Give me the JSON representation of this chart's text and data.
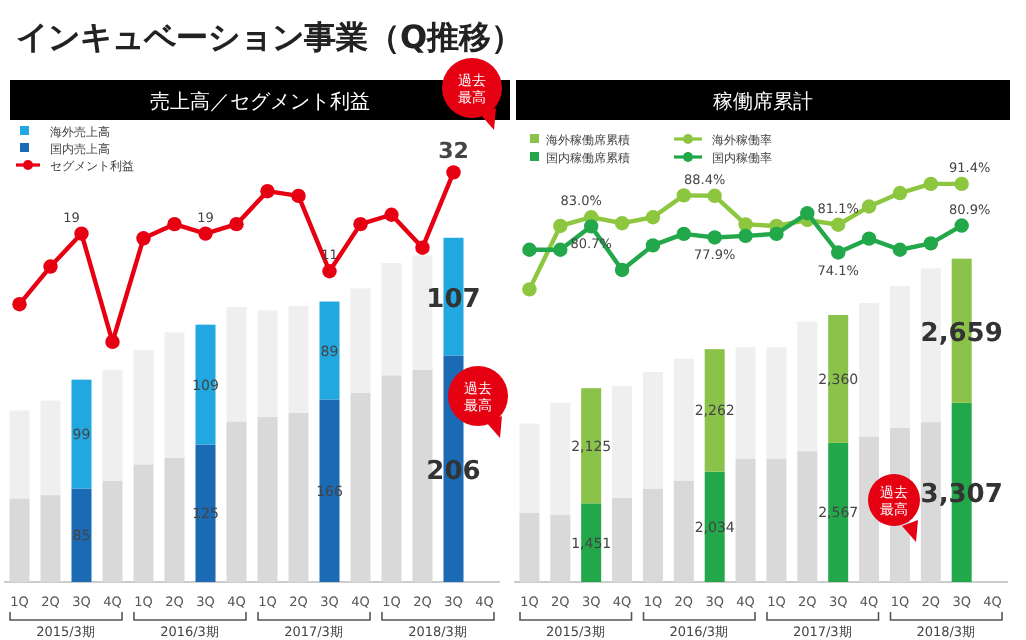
{
  "chart_data": [
    {
      "type": "bar",
      "stacked": true,
      "title": "インキュベーション事業（Q推移）",
      "subtitle": "売上高／セグメント利益",
      "categories": [
        "1Q",
        "2Q",
        "3Q",
        "4Q",
        "1Q",
        "2Q",
        "3Q",
        "4Q",
        "1Q",
        "2Q",
        "3Q",
        "4Q",
        "1Q",
        "2Q",
        "3Q",
        "4Q"
      ],
      "ylim": [
        0,
        411
      ],
      "y2lim": [
        -55,
        41
      ],
      "legend": "top left",
      "tick_labels": "x",
      "annotations": [
        "2015/3期",
        "2016/3期",
        "2017/3期",
        "2018/3期",
        "過去最高",
        "過去最高"
      ],
      "series": [
        {
          "name": "国内売上高",
          "color": "#1a6ab4",
          "colors": [
            "#d9d9d9",
            "#d9d9d9",
            "#1a6ab4",
            "#d9d9d9",
            "#d9d9d9",
            "#d9d9d9",
            "#1a6ab4",
            "#d9d9d9",
            "#d9d9d9",
            "#d9d9d9",
            "#1a6ab4",
            "#d9d9d9",
            "#d9d9d9",
            "#d9d9d9",
            "#1a6ab4",
            null
          ],
          "values": [
            76,
            79,
            85,
            92,
            107,
            113,
            125,
            146,
            150,
            154,
            166,
            172,
            188,
            193,
            206,
            null
          ],
          "value_labels": [
            null,
            null,
            "85",
            null,
            null,
            null,
            "125",
            null,
            null,
            null,
            "166",
            null,
            null,
            null,
            "206",
            null
          ]
        },
        {
          "name": "海外売上高",
          "color": "#22a8e0",
          "colors": [
            "#efefef",
            "#efefef",
            "#22a8e0",
            "#efefef",
            "#efefef",
            "#efefef",
            "#22a8e0",
            "#efefef",
            "#efefef",
            "#efefef",
            "#22a8e0",
            "#efefef",
            "#efefef",
            "#efefef",
            "#22a8e0",
            null
          ],
          "values": [
            80,
            86,
            99,
            101,
            104,
            114,
            109,
            104,
            97,
            97,
            89,
            95,
            102,
            104,
            107,
            null
          ],
          "value_labels": [
            null,
            null,
            "99",
            null,
            null,
            null,
            "109",
            null,
            null,
            null,
            "89",
            null,
            null,
            null,
            "107",
            null
          ]
        },
        {
          "name": "セグメント利益",
          "type": "line",
          "axis": "y2",
          "marker": "circle",
          "color": "#e60012",
          "values": [
            4,
            12,
            19,
            -4,
            18,
            21,
            19,
            21,
            28,
            27,
            11,
            21,
            23,
            16,
            32,
            null
          ],
          "value_labels": [
            null,
            null,
            "19",
            null,
            null,
            null,
            "19",
            null,
            null,
            null,
            "11",
            null,
            null,
            null,
            "32",
            null
          ]
        }
      ]
    },
    {
      "type": "bar",
      "stacked": true,
      "subtitle": "稼働席累計",
      "categories": [
        "1Q",
        "2Q",
        "3Q",
        "4Q",
        "1Q",
        "2Q",
        "3Q",
        "4Q",
        "1Q",
        "2Q",
        "3Q",
        "4Q",
        "1Q",
        "2Q",
        "3Q",
        "4Q"
      ],
      "ylim": [
        0,
        8340
      ],
      "y2lim": [
        -9,
        105
      ],
      "legend": "top left",
      "tick_labels": "x",
      "annotations": [
        "2015/3期",
        "2016/3期",
        "2017/3期",
        "2018/3期",
        "過去最高"
      ],
      "series": [
        {
          "name": "国内稼働席累積",
          "color": "#22a84b",
          "colors": [
            "#d9d9d9",
            "#d9d9d9",
            "#22a84b",
            "#d9d9d9",
            "#d9d9d9",
            "#d9d9d9",
            "#22a84b",
            "#d9d9d9",
            "#d9d9d9",
            "#d9d9d9",
            "#22a84b",
            "#d9d9d9",
            "#d9d9d9",
            "#d9d9d9",
            "#22a84b",
            null
          ],
          "values": [
            1281,
            1244,
            1451,
            1552,
            1724,
            1872,
            2034,
            2278,
            2278,
            2414,
            2567,
            2685,
            2850,
            2950,
            3307,
            null
          ],
          "value_labels": [
            null,
            null,
            "1,451",
            null,
            null,
            null,
            "2,034",
            null,
            null,
            null,
            "2,567",
            null,
            null,
            null,
            "3,307",
            null
          ]
        },
        {
          "name": "海外稼働席累積",
          "color": "#8bc34a",
          "colors": [
            "#efefef",
            "#efefef",
            "#8bc34a",
            "#efefef",
            "#efefef",
            "#efefef",
            "#8bc34a",
            "#efefef",
            "#efefef",
            "#efefef",
            "#8bc34a",
            "#efefef",
            "#efefef",
            "#efefef",
            "#8bc34a",
            null
          ],
          "values": [
            1643,
            2065,
            2125,
            2065,
            2150,
            2246,
            2262,
            2053,
            2053,
            2391,
            2360,
            2464,
            2609,
            2838,
            2659,
            null
          ],
          "value_labels": [
            null,
            null,
            "2,125",
            null,
            null,
            null,
            "2,262",
            null,
            null,
            null,
            "2,360",
            null,
            null,
            null,
            "2,659",
            null
          ]
        },
        {
          "name": "海外稼働率",
          "type": "line",
          "axis": "y2",
          "marker": "circle",
          "color": "#8dc63f",
          "values": [
            64.8,
            80.8,
            83.0,
            81.5,
            83.0,
            88.5,
            88.4,
            81.2,
            80.8,
            82.3,
            81.1,
            85.7,
            89.1,
            91.4,
            91.4,
            null
          ],
          "value_labels": [
            null,
            null,
            "83.0%",
            null,
            null,
            null,
            "88.4%",
            null,
            null,
            null,
            "81.1%",
            null,
            null,
            null,
            "91.4%",
            null
          ]
        },
        {
          "name": "国内稼働率",
          "type": "line",
          "axis": "y2",
          "marker": "circle",
          "color": "#22a84b",
          "values": [
            74.8,
            74.8,
            80.7,
            69.7,
            75.9,
            78.8,
            77.9,
            78.3,
            78.8,
            84.0,
            74.1,
            77.6,
            74.8,
            76.4,
            80.9,
            null
          ],
          "value_labels": [
            null,
            null,
            "80.7%",
            null,
            null,
            null,
            "77.9%",
            null,
            null,
            null,
            "74.1%",
            null,
            null,
            null,
            "80.9%",
            null
          ]
        }
      ]
    }
  ]
}
